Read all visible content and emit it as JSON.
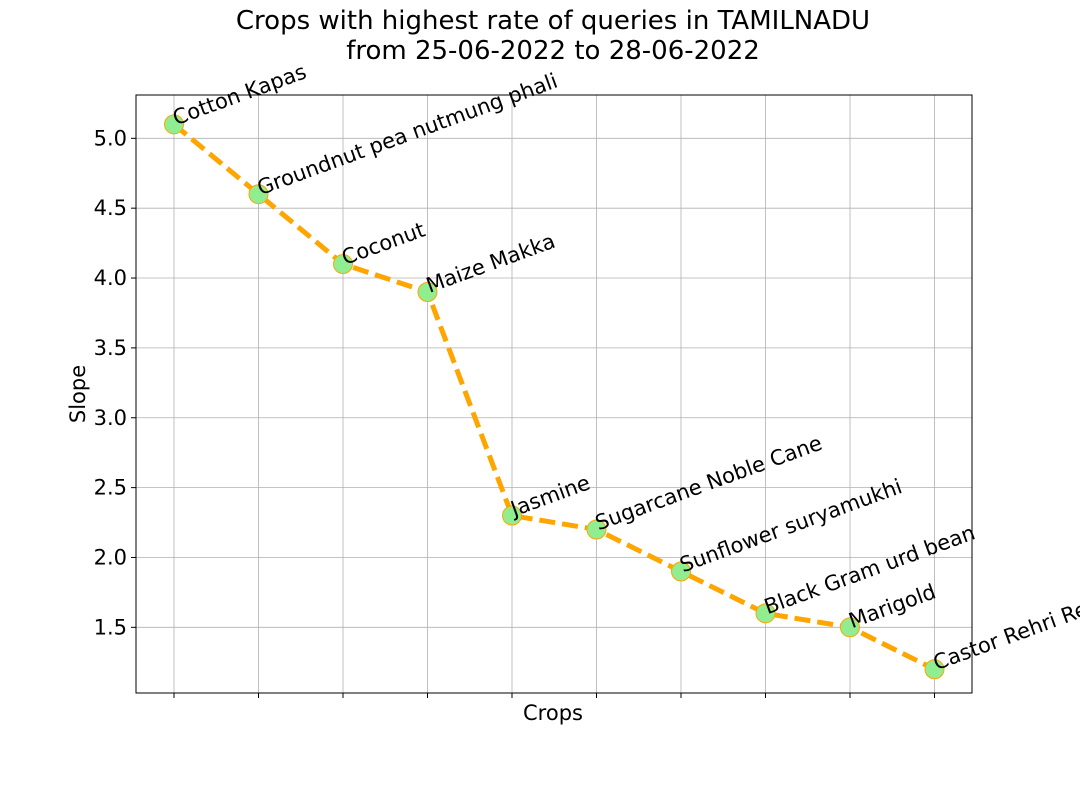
{
  "chart_data": {
    "type": "line",
    "title_line1": "Crops with highest rate of queries in TAMILNADU",
    "title_line2": "from 25-06-2022 to 28-06-2022",
    "xlabel": "Crops",
    "ylabel": "Slope",
    "categories": [
      "Cotton Kapas",
      "Groundnut pea nutmung phali",
      "Coconut",
      "Maize Makka",
      "Jasmine",
      "Sugarcane Noble Cane",
      "Sunflower suryamukhi",
      "Black Gram urd bean",
      "Marigold",
      "Castor Rehri Rendi"
    ],
    "values": [
      5.1,
      4.6,
      4.1,
      3.9,
      2.3,
      2.2,
      1.9,
      1.6,
      1.5,
      1.2
    ],
    "ylim": [
      1.03,
      5.31
    ],
    "yticks": [
      "1.5",
      "2.0",
      "2.5",
      "3.0",
      "3.5",
      "4.0",
      "4.5",
      "5.0"
    ],
    "ytick_values": [
      1.5,
      2.0,
      2.5,
      3.0,
      3.5,
      4.0,
      4.5,
      5.0
    ],
    "grid": true,
    "line_color": "#ffa500",
    "line_style": "dashed",
    "marker_fill": "#90ee90",
    "marker_edge": "#ffa500",
    "grid_color": "#b0b0b0"
  }
}
